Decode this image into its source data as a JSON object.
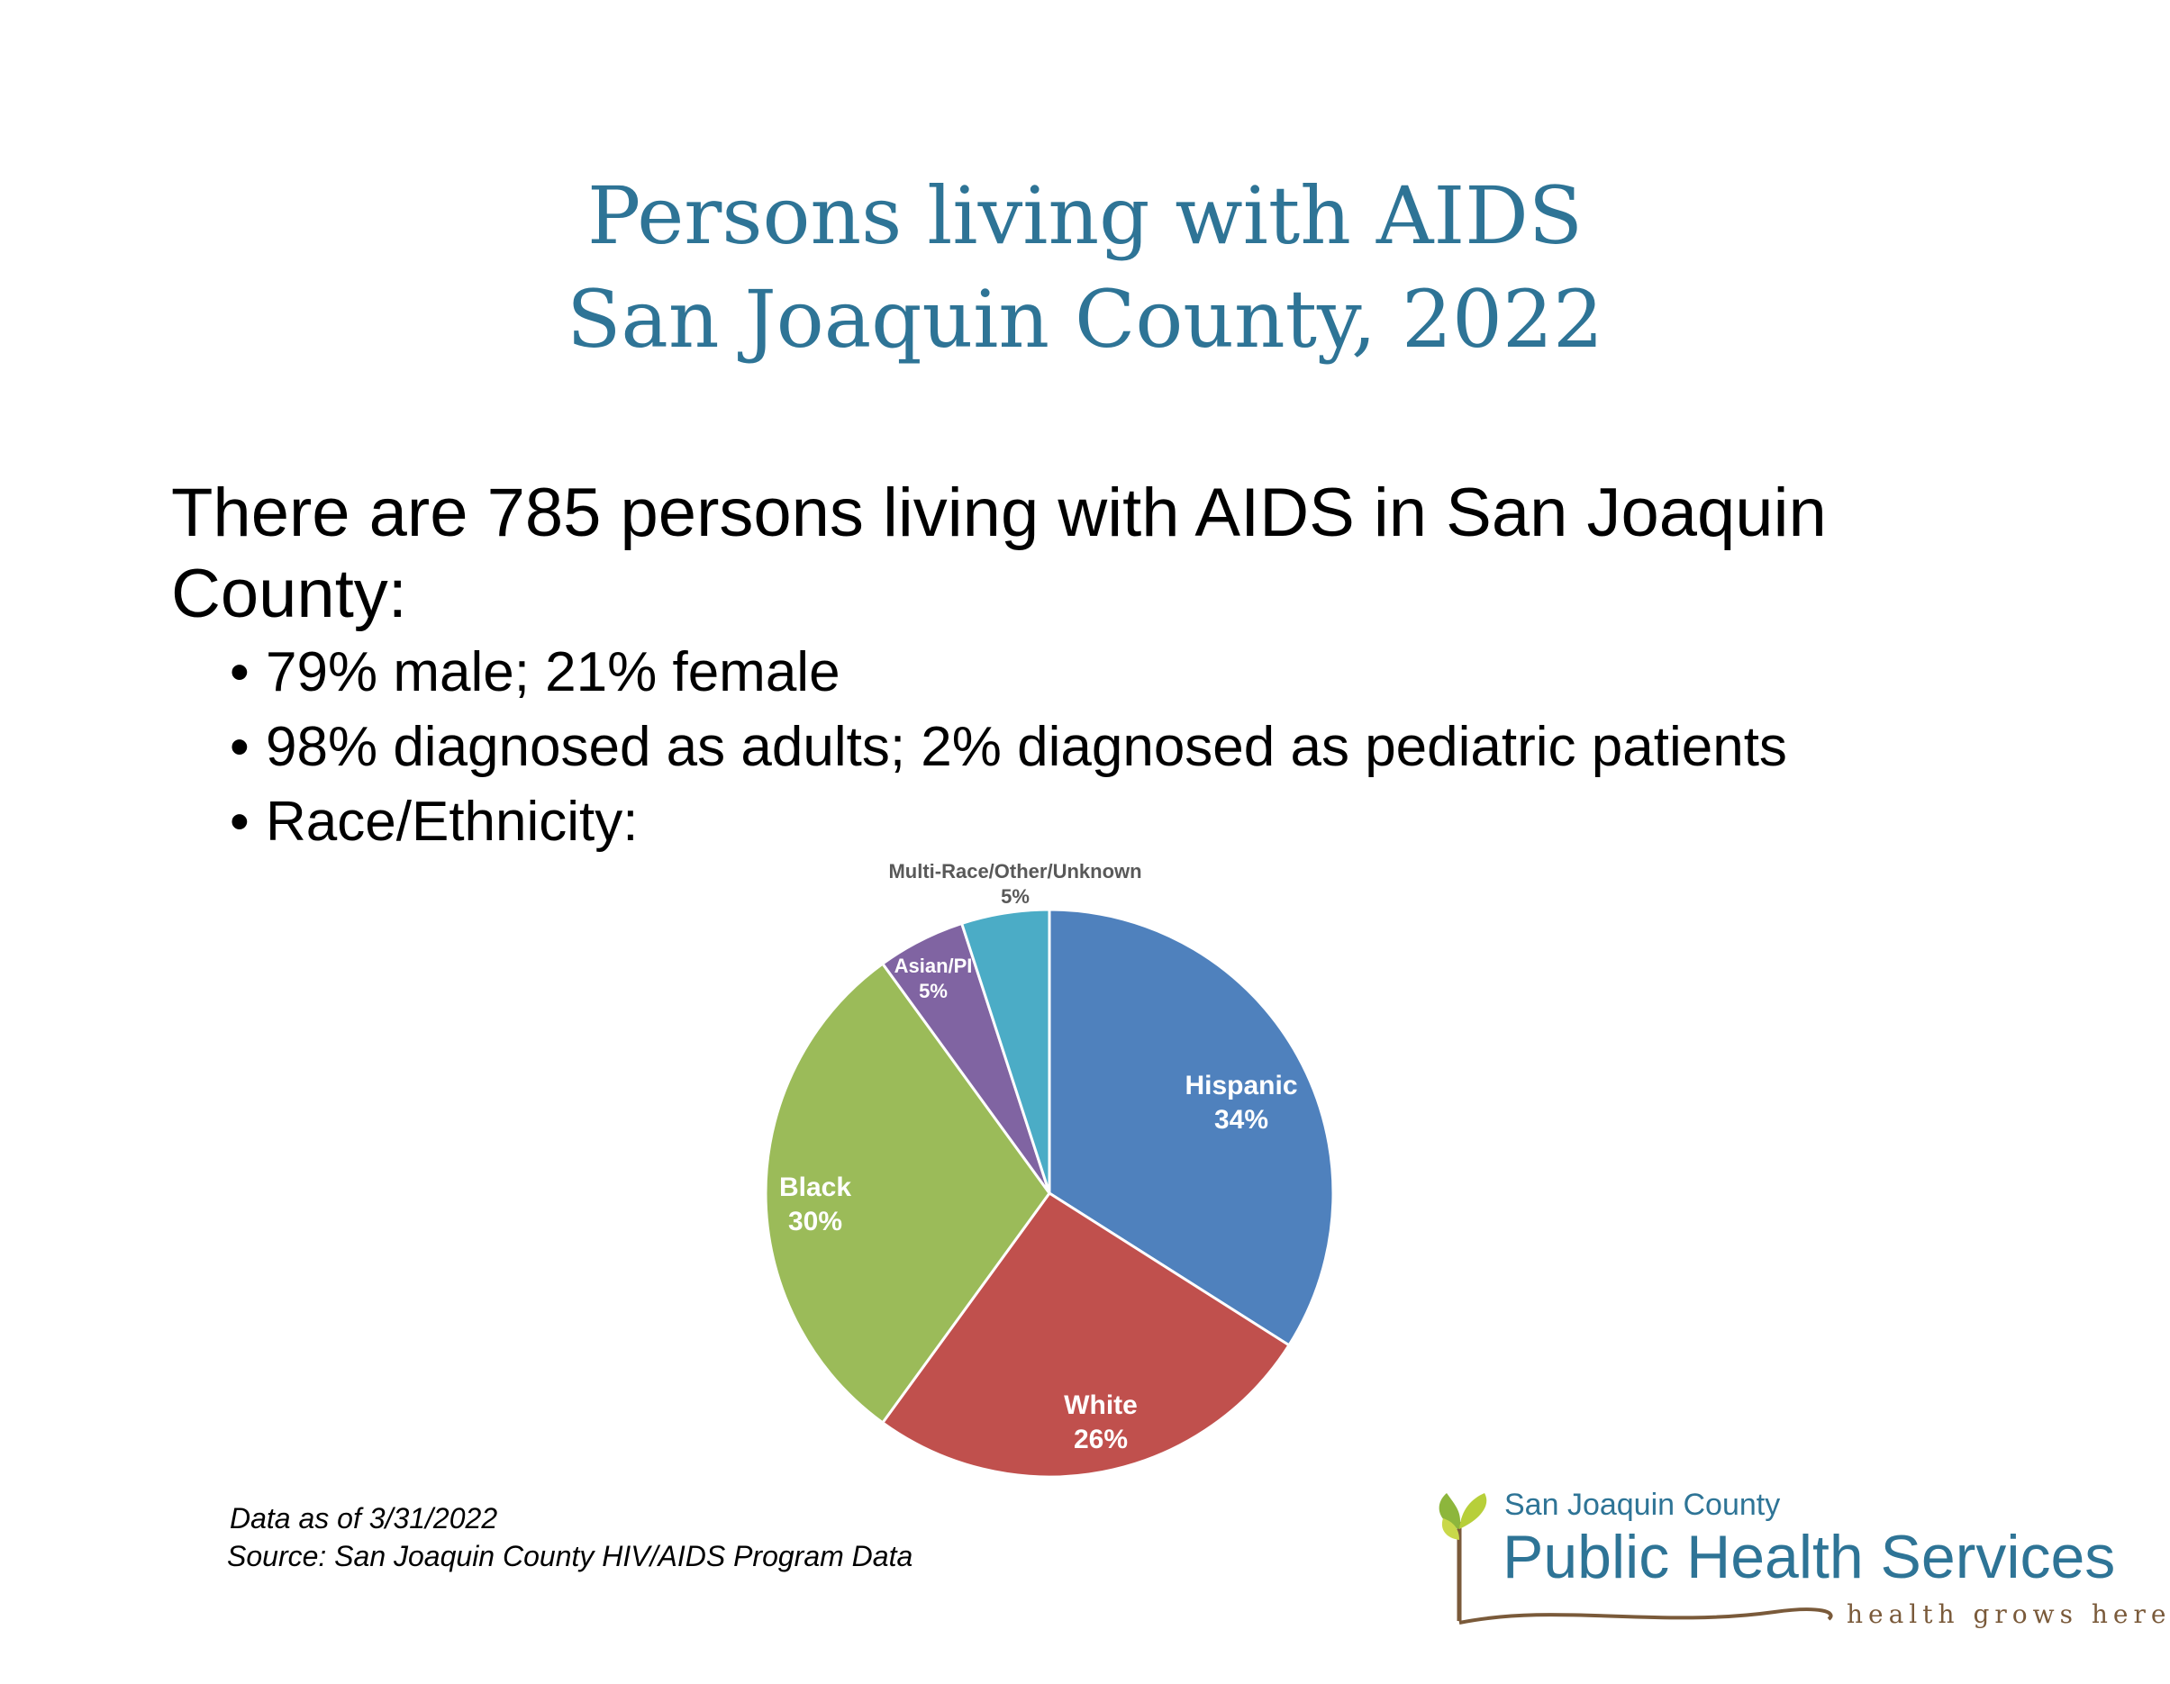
{
  "header": {
    "title_line1": "Persons living with AIDS",
    "title_line2": "San Joaquin County, 2022"
  },
  "intro": "There are 785 persons living with AIDS in San Joaquin County:",
  "bullets": [
    "79% male; 21% female",
    "98% diagnosed as adults; 2% diagnosed as pediatric patients",
    "Race/Ethnicity:"
  ],
  "chart_data": {
    "type": "pie",
    "title": "",
    "slices": [
      {
        "label": "Hispanic",
        "value": 34,
        "value_label": "34%",
        "color": "#4f81bd"
      },
      {
        "label": "White",
        "value": 26,
        "value_label": "26%",
        "color": "#c0504d"
      },
      {
        "label": "Black",
        "value": 30,
        "value_label": "30%",
        "color": "#9bbb59"
      },
      {
        "label": "Asian/PI",
        "value": 5,
        "value_label": "5%",
        "color": "#8064a2"
      },
      {
        "label": "Multi-Race/Other/Unknown",
        "value": 5,
        "value_label": "5%",
        "color": "#4bacc6"
      }
    ],
    "legend": "none"
  },
  "footer": {
    "date_note": "Data as of 3/31/2022",
    "source_note": "Source:  San Joaquin County HIV/AIDS Program Data"
  },
  "logo": {
    "org_small": "San Joaquin County",
    "org_big": "Public Health Services",
    "tagline": "health grows here"
  }
}
